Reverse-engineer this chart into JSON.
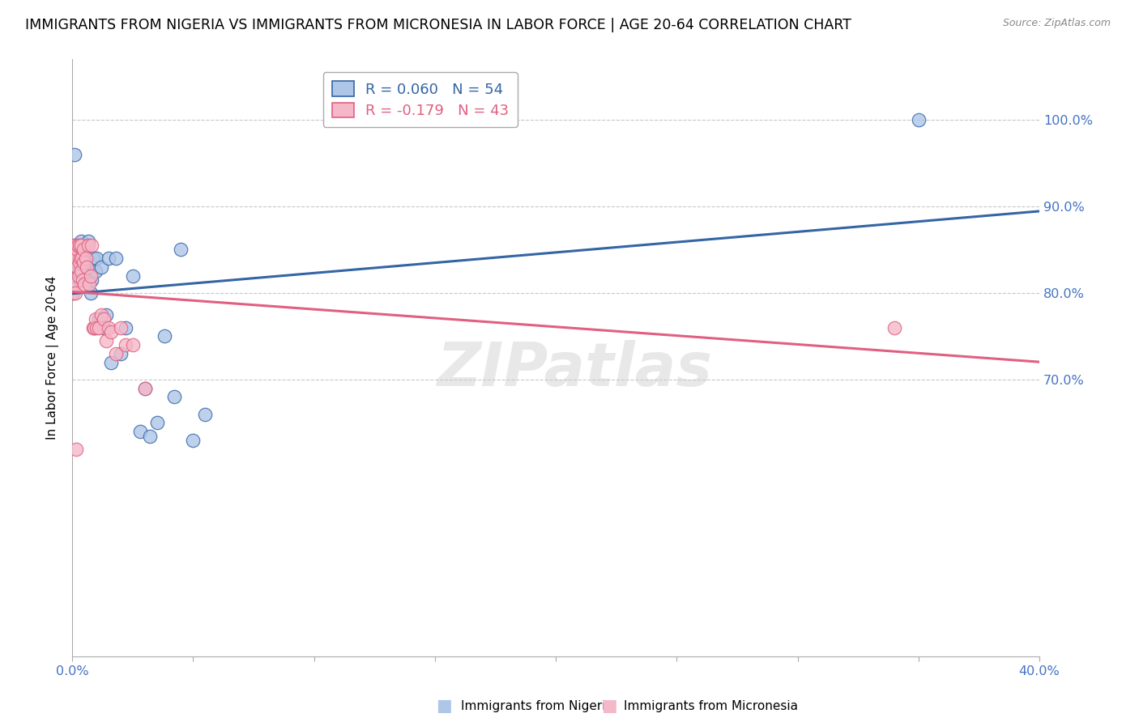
{
  "title": "IMMIGRANTS FROM NIGERIA VS IMMIGRANTS FROM MICRONESIA IN LABOR FORCE | AGE 20-64 CORRELATION CHART",
  "source": "Source: ZipAtlas.com",
  "ylabel": "In Labor Force | Age 20-64",
  "right_yticks": [
    0.7,
    0.8,
    0.9,
    1.0
  ],
  "right_ytick_labels": [
    "70.0%",
    "80.0%",
    "90.0%",
    "100.0%"
  ],
  "xlim": [
    0.0,
    0.4
  ],
  "ylim": [
    0.38,
    1.07
  ],
  "nigeria_color": "#aec6e8",
  "micronesia_color": "#f5b8c8",
  "nigeria_line_color": "#3465a4",
  "micronesia_line_color": "#e06080",
  "legend_nigeria_R": "R = 0.060",
  "legend_nigeria_N": "N = 54",
  "legend_micronesia_R": "R = -0.179",
  "legend_micronesia_N": "N = 43",
  "watermark": "ZIPatlas",
  "nigeria_x": [
    0.0002,
    0.0005,
    0.001,
    0.0012,
    0.0015,
    0.0018,
    0.002,
    0.0022,
    0.0025,
    0.0028,
    0.003,
    0.0032,
    0.0035,
    0.0038,
    0.004,
    0.0042,
    0.0045,
    0.0048,
    0.005,
    0.0052,
    0.0055,
    0.0058,
    0.006,
    0.0062,
    0.0065,
    0.0068,
    0.007,
    0.0075,
    0.008,
    0.0085,
    0.009,
    0.0095,
    0.01,
    0.011,
    0.012,
    0.013,
    0.014,
    0.015,
    0.016,
    0.018,
    0.02,
    0.022,
    0.025,
    0.028,
    0.03,
    0.032,
    0.035,
    0.038,
    0.042,
    0.045,
    0.05,
    0.055,
    0.35,
    0.001
  ],
  "nigeria_y": [
    0.8,
    0.81,
    0.855,
    0.82,
    0.83,
    0.835,
    0.845,
    0.855,
    0.84,
    0.825,
    0.82,
    0.815,
    0.855,
    0.86,
    0.845,
    0.835,
    0.85,
    0.83,
    0.835,
    0.82,
    0.855,
    0.82,
    0.84,
    0.825,
    0.86,
    0.815,
    0.835,
    0.8,
    0.815,
    0.84,
    0.76,
    0.825,
    0.84,
    0.77,
    0.83,
    0.76,
    0.775,
    0.84,
    0.72,
    0.84,
    0.73,
    0.76,
    0.82,
    0.64,
    0.69,
    0.635,
    0.65,
    0.75,
    0.68,
    0.85,
    0.63,
    0.66,
    1.0,
    0.96
  ],
  "micronesia_x": [
    0.0002,
    0.0005,
    0.0008,
    0.001,
    0.0012,
    0.0015,
    0.0018,
    0.002,
    0.0022,
    0.0025,
    0.0028,
    0.003,
    0.0032,
    0.0035,
    0.0038,
    0.004,
    0.0042,
    0.0045,
    0.0048,
    0.005,
    0.0055,
    0.006,
    0.0065,
    0.007,
    0.0075,
    0.008,
    0.0085,
    0.009,
    0.0095,
    0.01,
    0.011,
    0.012,
    0.013,
    0.014,
    0.015,
    0.016,
    0.018,
    0.02,
    0.022,
    0.025,
    0.03,
    0.34,
    0.0015
  ],
  "micronesia_y": [
    0.8,
    0.84,
    0.81,
    0.855,
    0.8,
    0.84,
    0.85,
    0.83,
    0.855,
    0.82,
    0.835,
    0.855,
    0.84,
    0.825,
    0.855,
    0.84,
    0.815,
    0.85,
    0.835,
    0.81,
    0.84,
    0.83,
    0.855,
    0.81,
    0.82,
    0.855,
    0.76,
    0.76,
    0.77,
    0.76,
    0.76,
    0.775,
    0.77,
    0.745,
    0.76,
    0.755,
    0.73,
    0.76,
    0.74,
    0.74,
    0.69,
    0.76,
    0.62
  ],
  "grid_yticks": [
    0.7,
    0.8,
    0.9,
    1.0
  ],
  "title_fontsize": 12.5,
  "label_fontsize": 11,
  "tick_fontsize": 11.5
}
